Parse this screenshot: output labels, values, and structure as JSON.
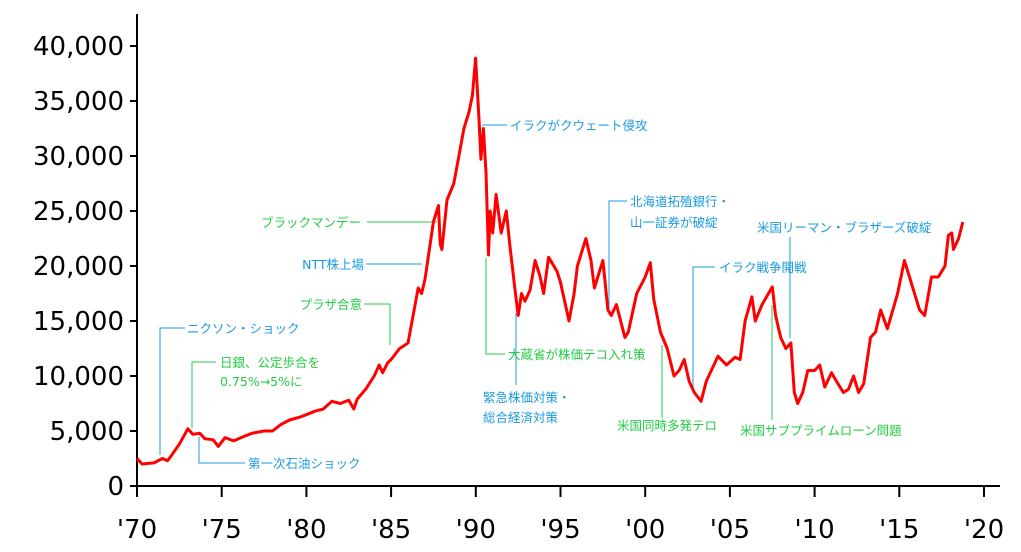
{
  "chart_data": {
    "type": "line",
    "title": "",
    "xlabel": "",
    "ylabel": "",
    "xlim": [
      1970,
      2020
    ],
    "ylim": [
      0,
      40000
    ],
    "grid": false,
    "line_color": "#ff0000",
    "x_ticks": [
      1970,
      1975,
      1980,
      1985,
      1990,
      1995,
      2000,
      2005,
      2010,
      2015,
      2020
    ],
    "x_tick_labels": [
      "'70",
      "'75",
      "'80",
      "'85",
      "'90",
      "'95",
      "'00",
      "'05",
      "'10",
      "'15",
      "'20"
    ],
    "y_ticks": [
      0,
      5000,
      10000,
      15000,
      20000,
      25000,
      30000,
      35000,
      40000
    ],
    "y_tick_labels": [
      "0",
      "5,000",
      "10,000",
      "15,000",
      "20,000",
      "25,000",
      "30,000",
      "35,000",
      "40,000"
    ],
    "series": [
      {
        "x": [
          1970.0,
          1970.3,
          1971.0,
          1971.5,
          1971.8,
          1972.0,
          1972.5,
          1973.0,
          1973.3,
          1973.7,
          1974.0,
          1974.5,
          1974.8,
          1975.2,
          1975.7,
          1976.3,
          1976.8,
          1977.5,
          1978.0,
          1978.5,
          1979.0,
          1979.7,
          1980.5,
          1981.0,
          1981.5,
          1982.0,
          1982.5,
          1982.8,
          1983.0,
          1983.5,
          1984.0,
          1984.3,
          1984.5,
          1984.8,
          1985.0,
          1985.5,
          1985.8,
          1986.0,
          1986.3,
          1986.6,
          1986.8,
          1987.0,
          1987.5,
          1987.8,
          1987.9,
          1988.0,
          1988.3,
          1988.7,
          1989.0,
          1989.3,
          1989.6,
          1989.8,
          1989.99,
          1990.2,
          1990.3,
          1990.45,
          1990.6,
          1990.75,
          1990.85,
          1991.0,
          1991.2,
          1991.5,
          1991.8,
          1992.0,
          1992.3,
          1992.5,
          1992.7,
          1992.9,
          1993.2,
          1993.5,
          1993.8,
          1994.0,
          1994.3,
          1994.8,
          1995.0,
          1995.5,
          1995.8,
          1996.0,
          1996.5,
          1996.8,
          1997.0,
          1997.5,
          1997.8,
          1998.0,
          1998.3,
          1998.8,
          1999.0,
          1999.5,
          2000.0,
          2000.3,
          2000.5,
          2000.9,
          2001.3,
          2001.7,
          2002.0,
          2002.3,
          2002.6,
          2002.9,
          2003.3,
          2003.6,
          2003.9,
          2004.3,
          2004.8,
          2005.3,
          2005.6,
          2005.9,
          2006.3,
          2006.5,
          2006.9,
          2007.5,
          2007.7,
          2008.0,
          2008.3,
          2008.6,
          2008.8,
          2009.0,
          2009.3,
          2009.6,
          2010.0,
          2010.3,
          2010.6,
          2011.0,
          2011.3,
          2011.7,
          2012.0,
          2012.3,
          2012.6,
          2012.9,
          2013.3,
          2013.6,
          2013.9,
          2014.3,
          2014.9,
          2015.3,
          2015.6,
          2015.9,
          2016.2,
          2016.5,
          2016.9,
          2017.3,
          2017.7,
          2017.9,
          2018.1,
          2018.2,
          2018.5,
          2018.75
        ],
        "y": [
          2500,
          2000,
          2100,
          2500,
          2300,
          2700,
          3800,
          5200,
          4700,
          4800,
          4300,
          4200,
          3600,
          4400,
          4100,
          4500,
          4800,
          5000,
          5000,
          5600,
          6000,
          6300,
          6800,
          7000,
          7700,
          7500,
          7800,
          7000,
          7900,
          8800,
          10000,
          11000,
          10300,
          11200,
          11500,
          12500,
          12800,
          13000,
          15500,
          18000,
          17500,
          18800,
          24000,
          25500,
          22000,
          21500,
          26000,
          27500,
          30000,
          32500,
          34000,
          35500,
          38900,
          33000,
          29700,
          32500,
          28500,
          21000,
          25000,
          23000,
          26500,
          23000,
          25000,
          22000,
          18000,
          15500,
          17500,
          16800,
          17800,
          20500,
          19000,
          17500,
          20800,
          19500,
          18500,
          15000,
          17500,
          20000,
          22500,
          20500,
          18000,
          20500,
          16000,
          15500,
          16500,
          13500,
          14000,
          17500,
          19000,
          20300,
          17000,
          14000,
          12500,
          10000,
          10500,
          11500,
          9500,
          8500,
          7700,
          9500,
          10500,
          11800,
          11000,
          11700,
          11500,
          15000,
          17200,
          15000,
          16500,
          18100,
          15500,
          13500,
          12500,
          13000,
          8500,
          7500,
          8500,
          10500,
          10500,
          11000,
          9000,
          10300,
          9500,
          8500,
          8800,
          10000,
          8500,
          9300,
          13500,
          14000,
          16000,
          14300,
          17500,
          20500,
          19000,
          17500,
          16000,
          15500,
          19000,
          19000,
          20000,
          22800,
          23000,
          21500,
          22500,
          24000
        ]
      }
    ],
    "annotations": {
      "nixon": "ニクソン・ショック",
      "boj_1": "日銀、公定歩合を",
      "boj_2": "0.75%→5%に",
      "oil": "第一次石油ショック",
      "plaza": "プラザ合意",
      "ntt": "NTT株上場",
      "black_monday": "ブラックマンデー",
      "kuwait": "イラクがクウェート侵攻",
      "mof": "大蔵省が株価テコ入れ策",
      "emergency_1": "緊急株価対策・",
      "emergency_2": "総合経済対策",
      "hokkaido_1": "北海道拓殖銀行・",
      "hokkaido_2": "山一証券が破綻",
      "sept11": "米国同時多発テロ",
      "iraq_war": "イラク戦争開戦",
      "lehman": "米国リーマン・ブラザーズ破綻",
      "subprime": "米国サブプライムローン問題"
    },
    "annotation_colors": {
      "blue": "#1a9be0",
      "green": "#22cc44"
    }
  }
}
